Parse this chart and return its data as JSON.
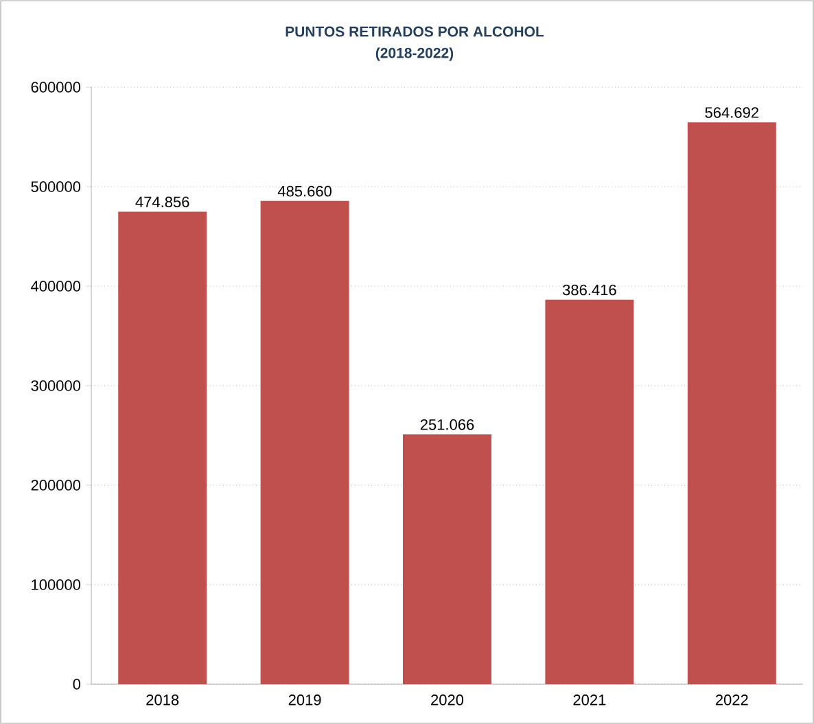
{
  "chart_data": {
    "type": "bar",
    "title": "PUNTOS RETIRADOS POR ALCOHOL",
    "subtitle": "(2018-2022)",
    "categories": [
      "2018",
      "2019",
      "2020",
      "2021",
      "2022"
    ],
    "values": [
      474856,
      485660,
      251066,
      386416,
      564692
    ],
    "value_labels": [
      "474.856",
      "485.660",
      "251.066",
      "386.416",
      "564.692"
    ],
    "color": "#c0504d",
    "ylim": [
      0,
      600000
    ],
    "yticks": [
      0,
      100000,
      200000,
      300000,
      400000,
      500000,
      600000
    ],
    "grid": "y"
  }
}
